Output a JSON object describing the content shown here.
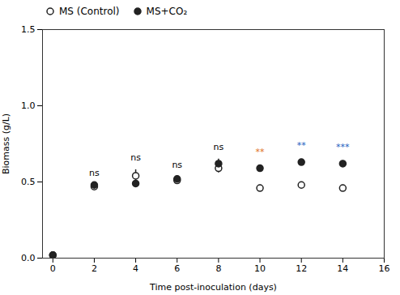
{
  "chart_data": {
    "type": "scatter",
    "xlabel": "Time post-inoculation (days)",
    "ylabel": "Biomass (g/L)",
    "series": [
      {
        "name": "MS (Control)",
        "color": "#222222",
        "marker": "open-circle",
        "x": [
          0,
          2,
          4,
          6,
          8,
          10,
          12,
          14
        ],
        "values": [
          0.02,
          0.47,
          0.54,
          0.51,
          0.59,
          0.46,
          0.48,
          0.46
        ],
        "errors": [
          0.0,
          0.01,
          0.04,
          0.02,
          0.03,
          0.02,
          0.02,
          0.02
        ]
      },
      {
        "name": "MS+CO₂",
        "color": "#222222",
        "marker": "circle",
        "x": [
          0,
          2,
          4,
          6,
          8,
          10,
          12,
          14
        ],
        "values": [
          0.02,
          0.48,
          0.49,
          0.52,
          0.62,
          0.59,
          0.63,
          0.62
        ],
        "errors": [
          0.0,
          0.01,
          0.02,
          0.02,
          0.03,
          0.02,
          0.02,
          0.02
        ]
      }
    ],
    "annotations": [
      {
        "x": 2,
        "y": 0.53,
        "text": "ns",
        "color": "black"
      },
      {
        "x": 4,
        "y": 0.63,
        "text": "ns",
        "color": "black"
      },
      {
        "x": 6,
        "y": 0.58,
        "text": "ns",
        "color": "black"
      },
      {
        "x": 8,
        "y": 0.7,
        "text": "ns",
        "color": "black"
      },
      {
        "x": 10,
        "y": 0.67,
        "text": "**",
        "color": "#e07020"
      },
      {
        "x": 12,
        "y": 0.71,
        "text": "**",
        "color": "#2060c0"
      },
      {
        "x": 14,
        "y": 0.7,
        "text": "***",
        "color": "#2060c0"
      }
    ],
    "xlim": [
      -0.5,
      16
    ],
    "ylim": [
      0,
      1.5
    ],
    "xticks": [
      0,
      2,
      4,
      6,
      8,
      10,
      12,
      14,
      16
    ],
    "yticks": [
      {
        "value": 0,
        "label": "0.0"
      },
      0.5,
      {
        "value": 1,
        "label": "1.0"
      },
      1.5
    ],
    "legend": "upper left"
  }
}
